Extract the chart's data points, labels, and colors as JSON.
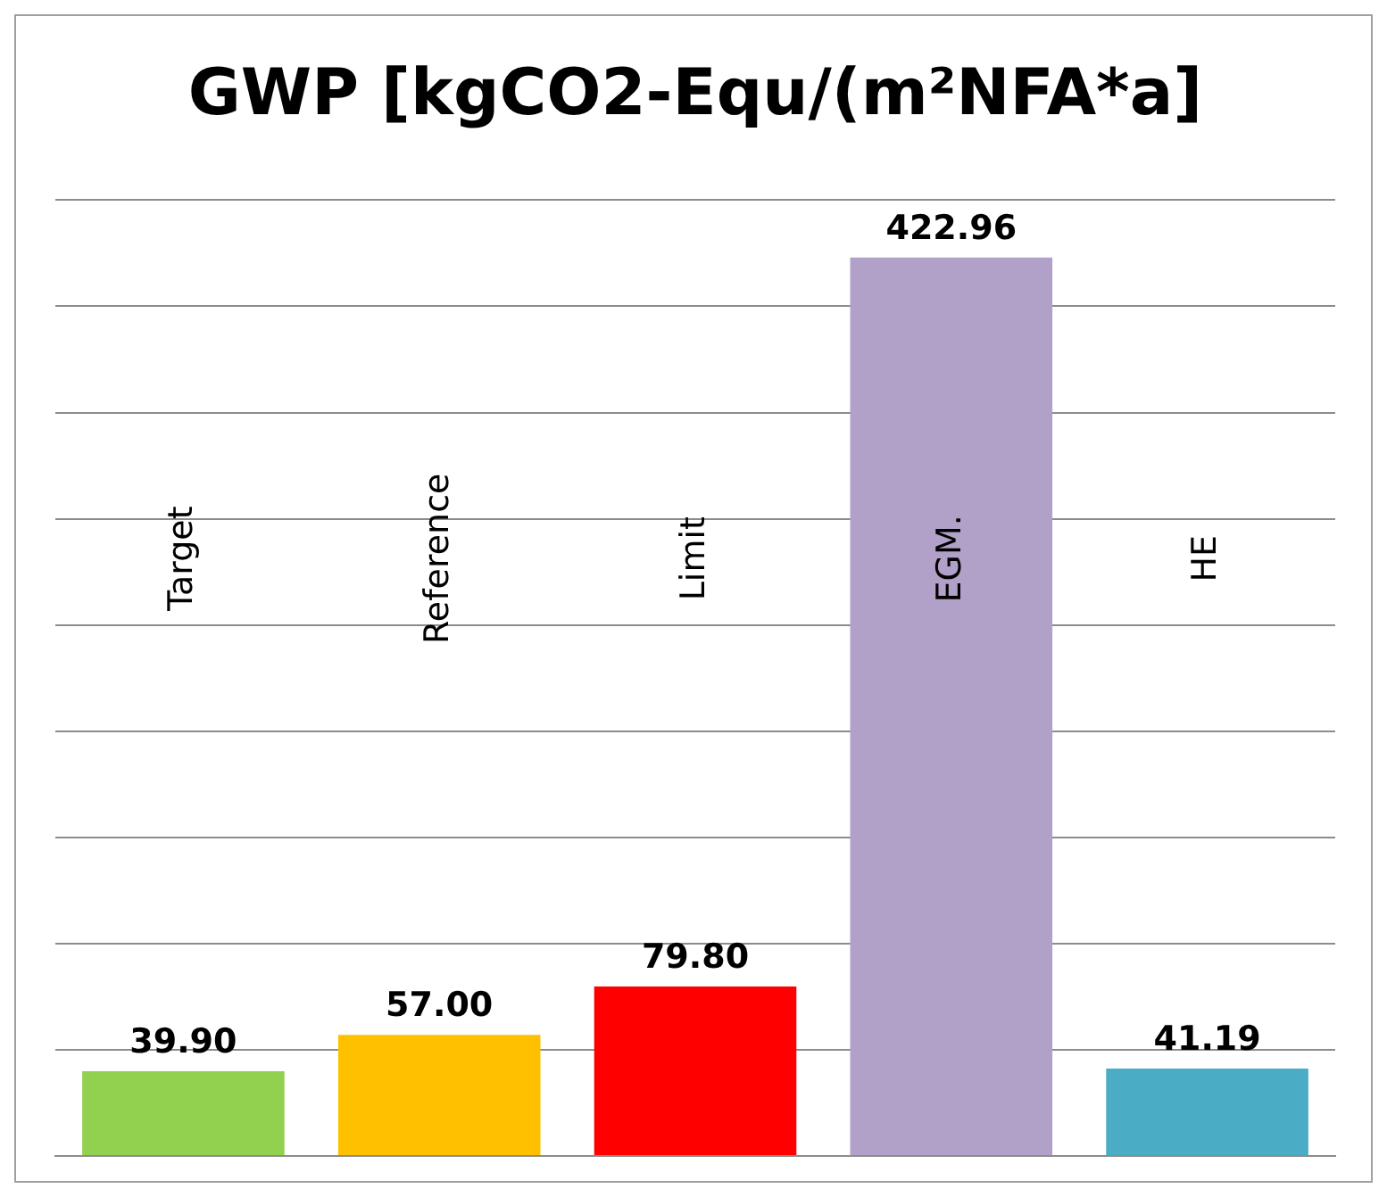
{
  "chart_data": {
    "type": "bar",
    "title": "GWP [kgCO2-Equ/(m²NFA*a]",
    "categories": [
      "Target",
      "Reference",
      "Limit",
      "EGM.",
      "HE"
    ],
    "values": [
      39.9,
      57.0,
      79.8,
      422.96,
      41.19
    ],
    "colors": [
      "#92d050",
      "#ffc000",
      "#ff0000",
      "#b1a0c7",
      "#4bacc6"
    ],
    "ylim": [
      0,
      450
    ],
    "yticks": [
      {
        "value": 0,
        "label": null
      },
      {
        "value": 50,
        "label": null
      },
      {
        "value": 100,
        "label": null
      },
      {
        "value": 150,
        "label": null
      },
      {
        "value": 200,
        "label": null
      },
      {
        "value": 250,
        "label": null
      },
      {
        "value": 300,
        "label": null
      },
      {
        "value": 350,
        "label": null
      },
      {
        "value": 400,
        "label": null
      },
      {
        "value": 450,
        "label": null
      }
    ],
    "value_labels": [
      "39.90",
      "57.00",
      "79.80",
      "422.96",
      "41.19"
    ],
    "grid": "y",
    "legend": false,
    "tick_labels": "x"
  }
}
